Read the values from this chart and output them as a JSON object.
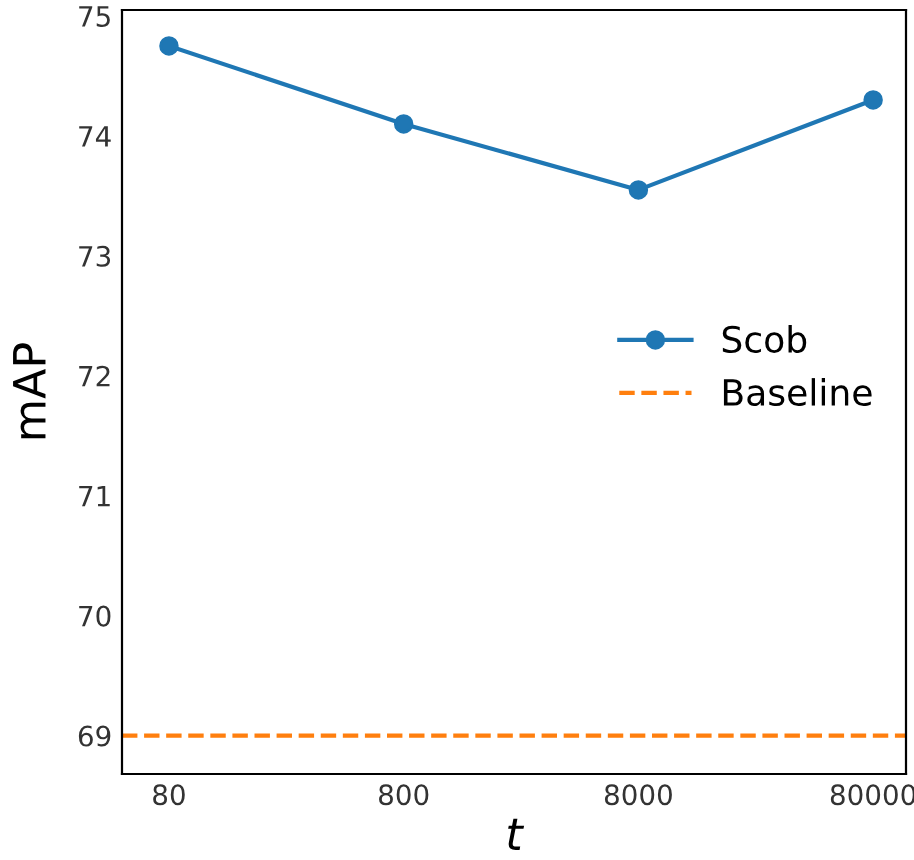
{
  "chart_data": {
    "type": "line",
    "xlabel": "t",
    "ylabel": "mAP",
    "categories": [
      "80",
      "800",
      "8000",
      "80000"
    ],
    "series": [
      {
        "name": "Scob",
        "color": "#1f77b4",
        "values": [
          74.75,
          74.1,
          73.55,
          74.3
        ]
      }
    ],
    "ref_lines": [
      {
        "axis": "y",
        "value": 69,
        "label": "Baseline",
        "color": "#ff7f0e",
        "line_style": "dashed"
      }
    ],
    "ylim": [
      68.68,
      75.05
    ],
    "yticks": [
      69,
      70,
      71,
      72,
      73,
      74,
      75
    ],
    "marker": "circle",
    "line_style": "solid",
    "grid": false,
    "legend": "center right"
  }
}
